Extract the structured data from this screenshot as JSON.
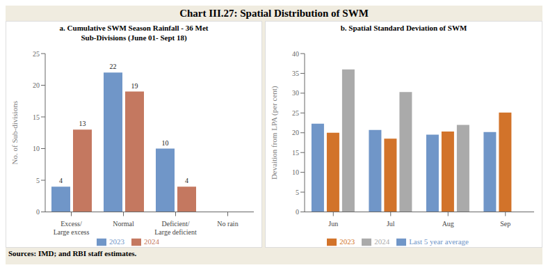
{
  "title": "Chart III.27: Spatial Distribution of SWM",
  "annotations": [
    "Sources: IMD; and RBI staff estimates."
  ],
  "chart_data": [
    {
      "type": "bar",
      "title": "a. Cumulative SWM Season Rainfall - 36 Met\nSub-Divisions (June 01- Sept 18)",
      "categories": [
        "Excess/\nLarge excess",
        "Normal",
        "Deficient/\nLarge deficient",
        "No rain"
      ],
      "series": [
        {
          "name": "2023",
          "color": "#7096c8",
          "values": [
            4,
            22,
            10,
            0
          ]
        },
        {
          "name": "2024",
          "color": "#c47860",
          "values": [
            13,
            19,
            4,
            0
          ]
        }
      ],
      "y_label": "No. of Sub-divisions",
      "ylim": [
        0,
        25
      ],
      "yticks": [
        0,
        5,
        10,
        15,
        20,
        25
      ],
      "grid": false,
      "legend": "bottom",
      "data_labels": true
    },
    {
      "type": "bar",
      "title": "b. Spatial Standard Deviation of SWM",
      "categories": [
        "Jun",
        "Jul",
        "Aug",
        "Sep"
      ],
      "series": [
        {
          "name": "Last 5 year average",
          "color": "#7096c8",
          "values": [
            22.3,
            20.7,
            19.5,
            20.2
          ]
        },
        {
          "name": "2023",
          "color": "#d2732a",
          "values": [
            20.0,
            18.5,
            20.3,
            25.1
          ]
        },
        {
          "name": "2024",
          "color": "#aaaaaa",
          "values": [
            36.0,
            30.3,
            22.0,
            null
          ]
        }
      ],
      "y_label": "Devaition from LPA (per cent)",
      "ylim": [
        0,
        40
      ],
      "yticks": [
        0,
        5,
        10,
        15,
        20,
        25,
        30,
        35,
        40
      ],
      "grid": false,
      "legend": "bottom",
      "data_labels": false
    }
  ]
}
